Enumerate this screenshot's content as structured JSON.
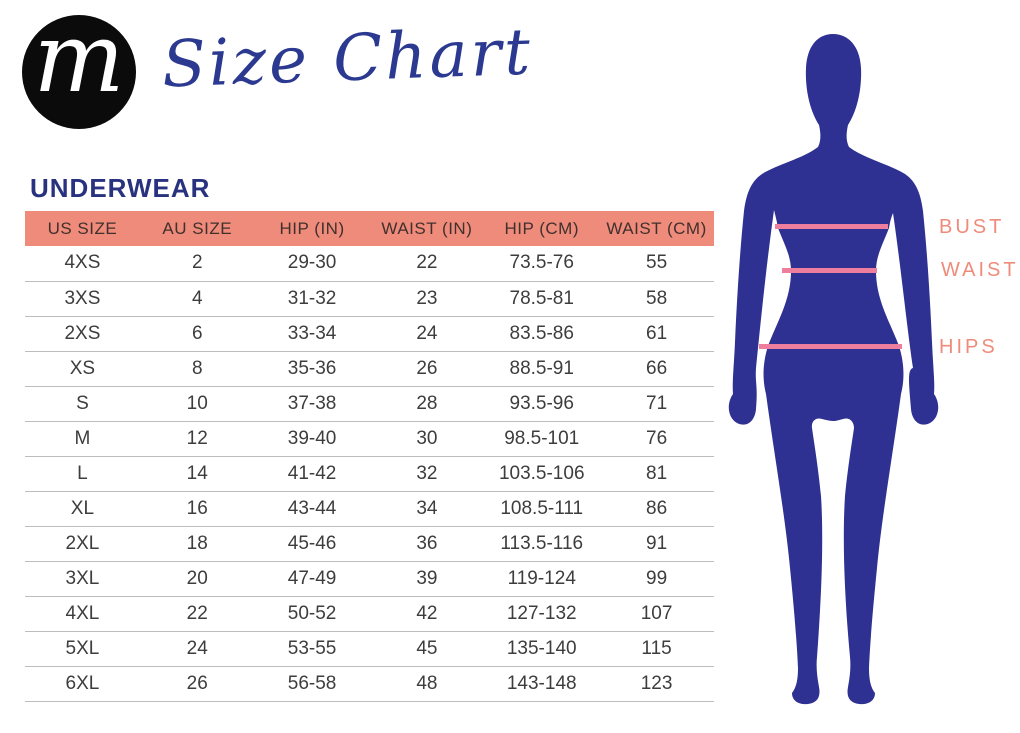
{
  "brand": {
    "logo_letter": "m"
  },
  "title": "Size Chart",
  "section_title": "UNDERWEAR",
  "table": {
    "headers": [
      "US SIZE",
      "AU SIZE",
      "HIP (IN)",
      "WAIST (IN)",
      "HIP (CM)",
      "WAIST (CM)"
    ],
    "rows": [
      [
        "4XS",
        "2",
        "29-30",
        "22",
        "73.5-76",
        "55"
      ],
      [
        "3XS",
        "4",
        "31-32",
        "23",
        "78.5-81",
        "58"
      ],
      [
        "2XS",
        "6",
        "33-34",
        "24",
        "83.5-86",
        "61"
      ],
      [
        "XS",
        "8",
        "35-36",
        "26",
        "88.5-91",
        "66"
      ],
      [
        "S",
        "10",
        "37-38",
        "28",
        "93.5-96",
        "71"
      ],
      [
        "M",
        "12",
        "39-40",
        "30",
        "98.5-101",
        "76"
      ],
      [
        "L",
        "14",
        "41-42",
        "32",
        "103.5-106",
        "81"
      ],
      [
        "XL",
        "16",
        "43-44",
        "34",
        "108.5-111",
        "86"
      ],
      [
        "2XL",
        "18",
        "45-46",
        "36",
        "113.5-116",
        "91"
      ],
      [
        "3XL",
        "20",
        "47-49",
        "39",
        "119-124",
        "99"
      ],
      [
        "4XL",
        "22",
        "50-52",
        "42",
        "127-132",
        "107"
      ],
      [
        "5XL",
        "24",
        "53-55",
        "45",
        "135-140",
        "115"
      ],
      [
        "6XL",
        "26",
        "56-58",
        "48",
        "143-148",
        "123"
      ]
    ]
  },
  "figure": {
    "labels": {
      "bust": "BUST",
      "waist": "WAIST",
      "hips": "HIPS"
    }
  },
  "colors": {
    "title_navy": "#2B3990",
    "section_navy": "#28327E",
    "header_salmon": "#EF8B7B",
    "header_text": "#40302C",
    "cell_text": "#3D3D3D",
    "divider_gray": "#BDBDBD",
    "figure_blue": "#2E3192",
    "measure_line_pink": "#EE7E9E",
    "label_salmon": "#EF8B7B",
    "logo_black": "#0B0B0B"
  }
}
